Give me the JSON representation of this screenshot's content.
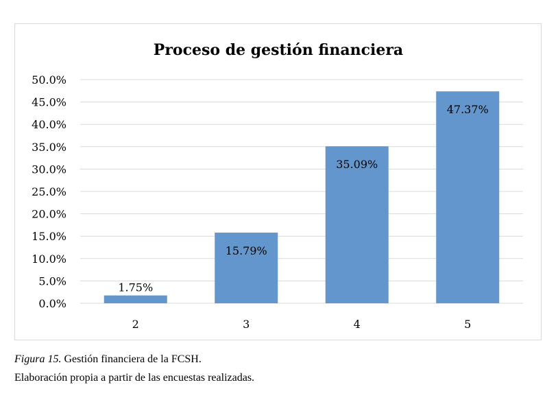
{
  "chart_data": {
    "type": "bar",
    "title": "Proceso de gestión financiera",
    "categories": [
      "2",
      "3",
      "4",
      "5"
    ],
    "values": [
      1.75,
      15.79,
      35.09,
      47.37
    ],
    "data_labels": [
      "1.75%",
      "15.79%",
      "35.09%",
      "47.37%"
    ],
    "ylim": [
      0,
      50
    ],
    "y_ticks": [
      "0.0%",
      "5.0%",
      "10.0%",
      "15.0%",
      "20.0%",
      "25.0%",
      "30.0%",
      "35.0%",
      "40.0%",
      "45.0%",
      "50.0%"
    ],
    "xlabel": "",
    "ylabel": "",
    "grid": true,
    "legend": "none",
    "bar_color": "#6396CC",
    "grid_color": "#d9d9d9"
  },
  "caption": {
    "figure_label": "Figura 15.",
    "figure_text": " Gestión financiera de la FCSH.",
    "source": "Elaboración propia a partir de las encuestas realizadas."
  }
}
